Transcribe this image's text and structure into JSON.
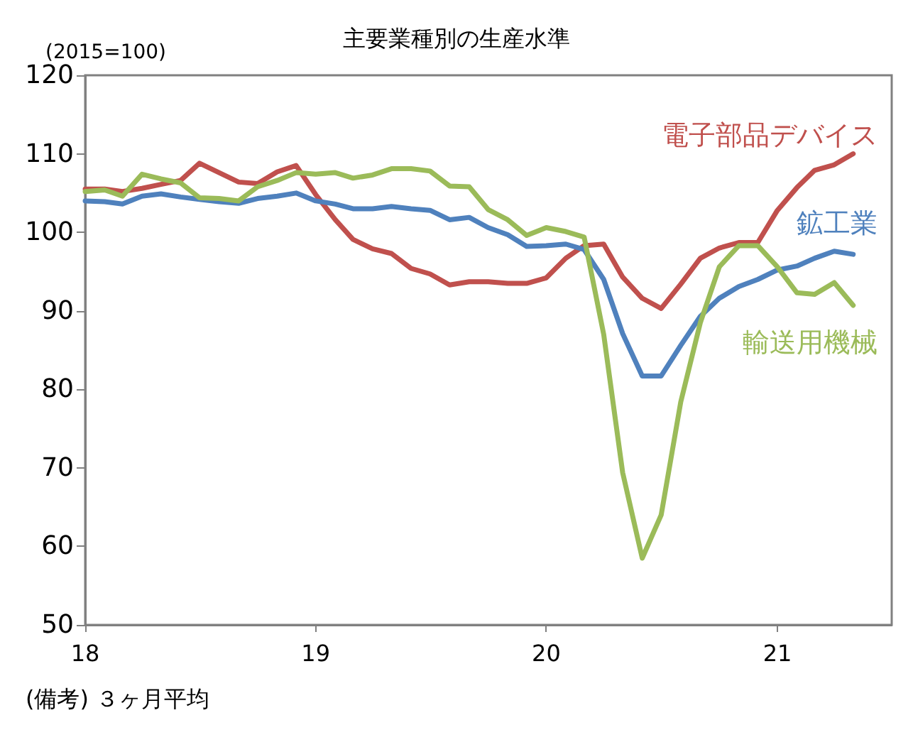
{
  "chart_data": {
    "type": "line",
    "title": "主要業種別の生産水準",
    "ylabel": "(2015=100)",
    "annotations": [
      "(備考) ３ヶ月平均"
    ],
    "x": [
      "2018-01",
      "2018-02",
      "2018-03",
      "2018-04",
      "2018-05",
      "2018-06",
      "2018-07",
      "2018-08",
      "2018-09",
      "2018-10",
      "2018-11",
      "2018-12",
      "2019-01",
      "2019-02",
      "2019-03",
      "2019-04",
      "2019-05",
      "2019-06",
      "2019-07",
      "2019-08",
      "2019-09",
      "2019-10",
      "2019-11",
      "2019-12",
      "2020-01",
      "2020-02",
      "2020-03",
      "2020-04",
      "2020-05",
      "2020-06",
      "2020-07",
      "2020-08",
      "2020-09",
      "2020-10",
      "2020-11",
      "2020-12",
      "2021-01",
      "2021-02",
      "2021-03",
      "2021-04",
      "2021-05"
    ],
    "series": [
      {
        "name": "電子部品デバイス",
        "color": "#c0504d",
        "values": [
          105.5,
          105.5,
          105.2,
          105.6,
          106.1,
          106.6,
          108.8,
          107.6,
          106.4,
          106.2,
          107.7,
          108.5,
          104.8,
          101.6,
          99.1,
          97.9,
          97.3,
          95.4,
          94.7,
          93.3,
          93.7,
          93.7,
          93.5,
          93.5,
          94.2,
          96.7,
          98.3,
          98.5,
          94.3,
          91.6,
          90.3,
          93.4,
          96.7,
          98.0,
          98.7,
          98.7,
          102.8,
          105.7,
          107.9,
          108.6,
          110.0
        ]
      },
      {
        "name": "鉱工業",
        "color": "#4f81bd",
        "values": [
          104.0,
          103.9,
          103.6,
          104.6,
          104.9,
          104.5,
          104.2,
          103.9,
          103.7,
          104.3,
          104.6,
          105.0,
          104.0,
          103.6,
          103.0,
          103.0,
          103.3,
          103.0,
          102.8,
          101.6,
          101.9,
          100.6,
          99.7,
          98.2,
          98.3,
          98.5,
          97.8,
          94.0,
          87.1,
          81.7,
          81.7,
          85.6,
          89.3,
          91.6,
          93.1,
          94.0,
          95.2,
          95.7,
          96.7,
          97.6,
          97.2
        ]
      },
      {
        "name": "輸送用機械",
        "color": "#9bbb59",
        "values": [
          105.2,
          105.4,
          104.6,
          107.4,
          106.8,
          106.3,
          104.4,
          104.3,
          104.0,
          105.8,
          106.6,
          107.6,
          107.4,
          107.6,
          106.9,
          107.3,
          108.1,
          108.1,
          107.8,
          105.9,
          105.8,
          102.9,
          101.6,
          99.6,
          100.6,
          100.1,
          99.4,
          87.0,
          69.4,
          58.5,
          64.0,
          78.4,
          88.5,
          95.6,
          98.3,
          98.3,
          95.6,
          92.3,
          92.1,
          93.6,
          90.7
        ]
      }
    ],
    "xlim": [
      "2018-01",
      "2021-07"
    ],
    "xticks": [
      {
        "value": "2018",
        "label": "18"
      },
      {
        "value": "2019",
        "label": "19"
      },
      {
        "value": "2020",
        "label": "20"
      },
      {
        "value": "2021",
        "label": "21"
      }
    ],
    "ylim": [
      50,
      120
    ],
    "yticks": [
      50,
      60,
      70,
      80,
      90,
      100,
      110,
      120
    ],
    "grid": false,
    "legend": false,
    "marker": "none",
    "line_style": "solid"
  }
}
